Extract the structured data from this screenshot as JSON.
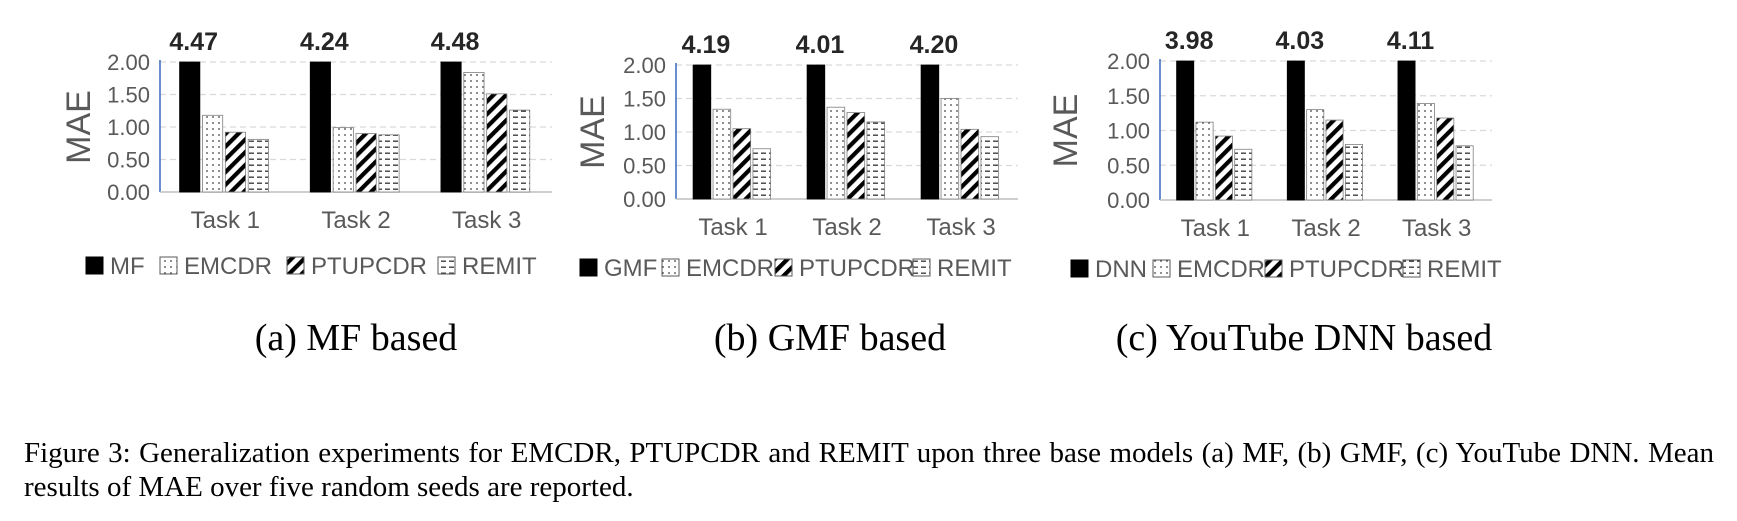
{
  "chart_data": [
    {
      "type": "bar",
      "subtitle": "(a) MF based",
      "ylabel": "MAE",
      "ylim": [
        0,
        2.0
      ],
      "yticks": [
        "0.00",
        "0.50",
        "1.00",
        "1.50",
        "2.00"
      ],
      "grid": true,
      "legend_position": "bottom",
      "categories": [
        "Task 1",
        "Task 2",
        "Task 3"
      ],
      "series": [
        {
          "name": "MF",
          "values": [
            4.47,
            4.24,
            4.48
          ],
          "labels": [
            "4.47",
            "4.24",
            "4.48"
          ],
          "pattern": "solid"
        },
        {
          "name": "EMCDR",
          "values": [
            1.18,
            0.99,
            1.84
          ],
          "pattern": "dots"
        },
        {
          "name": "PTUPCDR",
          "values": [
            0.92,
            0.9,
            1.51
          ],
          "pattern": "diag"
        },
        {
          "name": "REMIT",
          "values": [
            0.81,
            0.88,
            1.26
          ],
          "pattern": "dash"
        }
      ]
    },
    {
      "type": "bar",
      "subtitle": "(b) GMF based",
      "ylabel": "MAE",
      "ylim": [
        0,
        2.0
      ],
      "yticks": [
        "0.00",
        "0.50",
        "1.00",
        "1.50",
        "2.00"
      ],
      "grid": true,
      "legend_position": "bottom",
      "categories": [
        "Task 1",
        "Task 2",
        "Task 3"
      ],
      "series": [
        {
          "name": "GMF",
          "values": [
            4.19,
            4.01,
            4.2
          ],
          "labels": [
            "4.19",
            "4.01",
            "4.20"
          ],
          "pattern": "solid"
        },
        {
          "name": "EMCDR",
          "values": [
            1.34,
            1.37,
            1.5
          ],
          "pattern": "dots"
        },
        {
          "name": "PTUPCDR",
          "values": [
            1.05,
            1.29,
            1.04
          ],
          "pattern": "diag"
        },
        {
          "name": "REMIT",
          "values": [
            0.75,
            1.15,
            0.93
          ],
          "pattern": "dash"
        }
      ]
    },
    {
      "type": "bar",
      "subtitle": "(c) YouTube DNN based",
      "ylabel": "MAE",
      "ylim": [
        0,
        2.0
      ],
      "yticks": [
        "0.00",
        "0.50",
        "1.00",
        "1.50",
        "2.00"
      ],
      "grid": true,
      "legend_position": "bottom",
      "categories": [
        "Task 1",
        "Task 2",
        "Task 3"
      ],
      "series": [
        {
          "name": "DNN",
          "values": [
            3.98,
            4.03,
            4.11
          ],
          "labels": [
            "3.98",
            "4.03",
            "4.11"
          ],
          "pattern": "solid"
        },
        {
          "name": "EMCDR",
          "values": [
            1.12,
            1.3,
            1.39
          ],
          "pattern": "dots"
        },
        {
          "name": "PTUPCDR",
          "values": [
            0.92,
            1.15,
            1.18
          ],
          "pattern": "diag"
        },
        {
          "name": "REMIT",
          "values": [
            0.73,
            0.8,
            0.78
          ],
          "pattern": "dash"
        }
      ]
    }
  ],
  "caption": "Figure 3: Generalization experiments for EMCDR, PTUPCDR and REMIT upon three base models (a) MF, (b) GMF, (c) YouTube DNN. Mean results of MAE over five random seeds are reported."
}
